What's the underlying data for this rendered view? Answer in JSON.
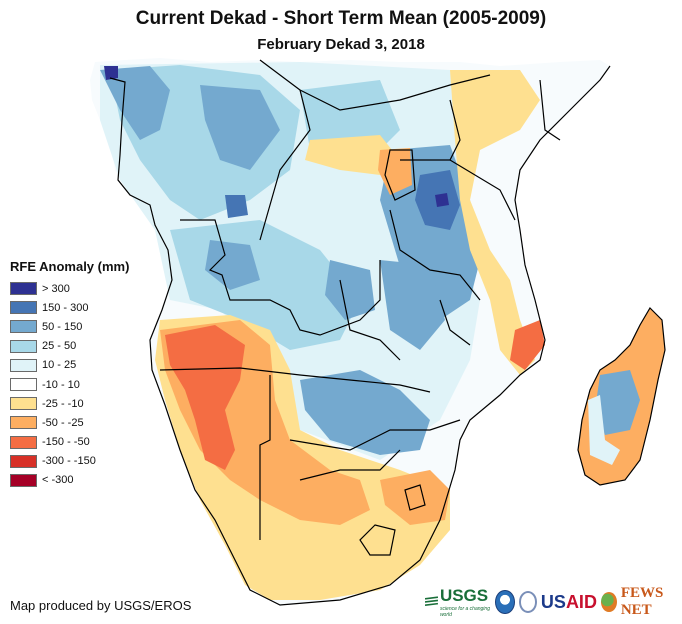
{
  "title": "Current Dekad - Short Term Mean (2005-2009)",
  "subtitle": "February Dekad 3, 2018",
  "legend": {
    "title": "RFE Anomaly (mm)",
    "items": [
      {
        "label": "> 300",
        "color": "#2e3192"
      },
      {
        "label": "150 - 300",
        "color": "#4575b4"
      },
      {
        "label": "50 - 150",
        "color": "#74a9cf"
      },
      {
        "label": "25 - 50",
        "color": "#a8d8e8"
      },
      {
        "label": "10 - 25",
        "color": "#e0f3f8"
      },
      {
        "label": "-10 - 10",
        "color": "#ffffff"
      },
      {
        "label": "-25 - -10",
        "color": "#fee090"
      },
      {
        "label": "-50 - -25",
        "color": "#fdae61"
      },
      {
        "label": "-150 - -50",
        "color": "#f46d43"
      },
      {
        "label": "-300 - -150",
        "color": "#d73027"
      },
      {
        "label": "< -300",
        "color": "#a50026"
      }
    ]
  },
  "credit": "Map produced by USGS/EROS",
  "logos": {
    "usgs": "USGS",
    "usgs_tagline": "science for a changing world",
    "noaa": "NOAA",
    "usaid_us": "US",
    "usaid_aid": "AID",
    "fews": "FEWS NET"
  }
}
